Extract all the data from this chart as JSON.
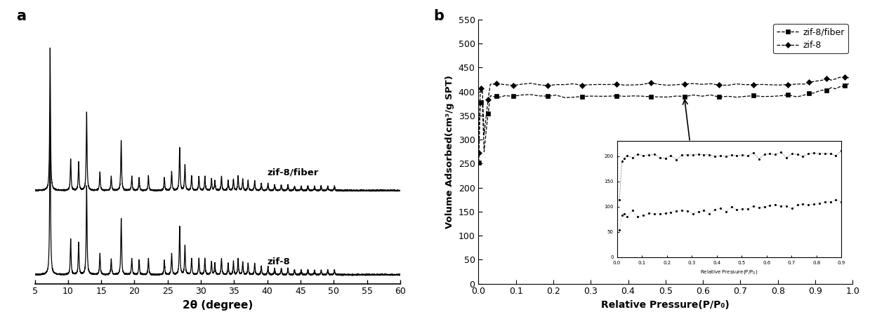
{
  "panel_a_label": "a",
  "panel_b_label": "b",
  "xrd_xlabel": "2θ (degree)",
  "xrd_label1": "zif-8/fiber",
  "xrd_label2": "zif-8",
  "ads_xlabel": "Relative Pressure(P/P₀)",
  "ads_ylabel": "Volume Adsorbed(cm³/g SPT)",
  "ads_xlim": [
    0.0,
    1.0
  ],
  "ads_ylim": [
    0,
    550
  ],
  "ads_yticks": [
    0,
    50,
    100,
    150,
    200,
    250,
    300,
    350,
    400,
    450,
    500,
    550
  ],
  "ads_xticks": [
    0.0,
    0.1,
    0.2,
    0.3,
    0.4,
    0.5,
    0.6,
    0.7,
    0.8,
    0.9,
    1.0
  ],
  "legend_label1": "zif-8/fiber",
  "legend_label2": "zif-8",
  "xrd_xlim": [
    5,
    60
  ],
  "xrd_xticks": [
    5,
    10,
    15,
    20,
    25,
    30,
    35,
    40,
    45,
    50,
    55,
    60
  ],
  "background_color": "#ffffff"
}
